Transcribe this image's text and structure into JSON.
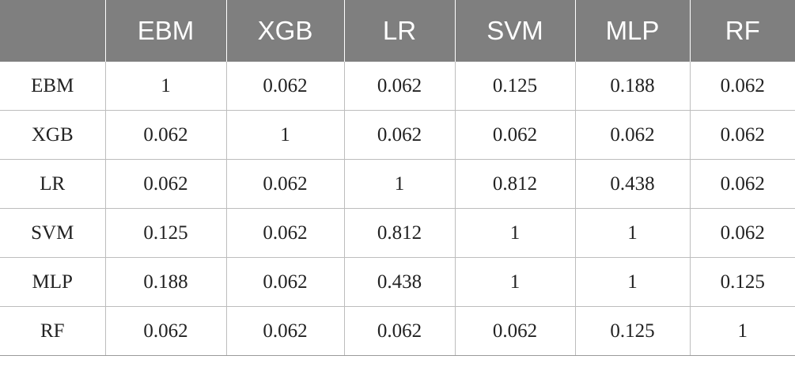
{
  "table": {
    "columns": [
      "",
      "EBM",
      "XGB",
      "LR",
      "SVM",
      "MLP",
      "RF"
    ],
    "rows": [
      {
        "label": "EBM",
        "values": [
          "1",
          "0.062",
          "0.062",
          "0.125",
          "0.188",
          "0.062"
        ]
      },
      {
        "label": "XGB",
        "values": [
          "0.062",
          "1",
          "0.062",
          "0.062",
          "0.062",
          "0.062"
        ]
      },
      {
        "label": "LR",
        "values": [
          "0.062",
          "0.062",
          "1",
          "0.812",
          "0.438",
          "0.062"
        ]
      },
      {
        "label": "SVM",
        "values": [
          "0.125",
          "0.062",
          "0.812",
          "1",
          "1",
          "0.062"
        ]
      },
      {
        "label": "MLP",
        "values": [
          "0.188",
          "0.062",
          "0.438",
          "1",
          "1",
          "0.125"
        ]
      },
      {
        "label": "RF",
        "values": [
          "0.062",
          "0.062",
          "0.062",
          "0.062",
          "0.125",
          "1"
        ]
      }
    ]
  },
  "colors": {
    "header_background": "#7f7f7f",
    "header_text": "#ffffff",
    "grid_line": "#bdbdbd"
  }
}
